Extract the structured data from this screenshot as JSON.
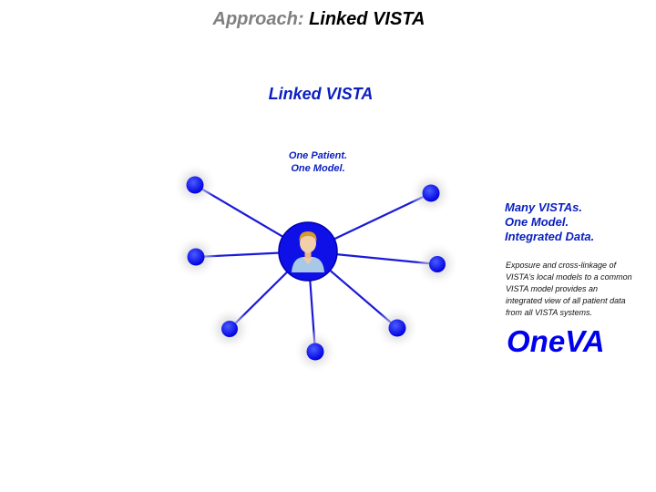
{
  "title": {
    "prefix": "Approach:",
    "main": "Linked VISTA"
  },
  "subtitle": "Linked VISTA",
  "patient_caption": {
    "line1": "One Patient.",
    "line2": "One Model."
  },
  "right_heading": {
    "line1": "Many VISTAs.",
    "line2": "One Model.",
    "line3": "Integrated Data."
  },
  "right_body": {
    "line1": "Exposure and cross-linkage of",
    "line2": "VISTA's local models to a common",
    "line3": "VISTA model provides an",
    "line4": "integrated view of all patient data",
    "line5": "from all VISTA systems."
  },
  "brand": "OneVA",
  "colors": {
    "accent_blue": "#0a1fbf",
    "node_blue": "#1a1aff",
    "brand_blue": "#0000ee",
    "title_gray": "#808080",
    "link_line": "#1a1ad8"
  },
  "icons": {
    "center": "patient-avatar-icon",
    "satellite": "vista-node-icon"
  }
}
